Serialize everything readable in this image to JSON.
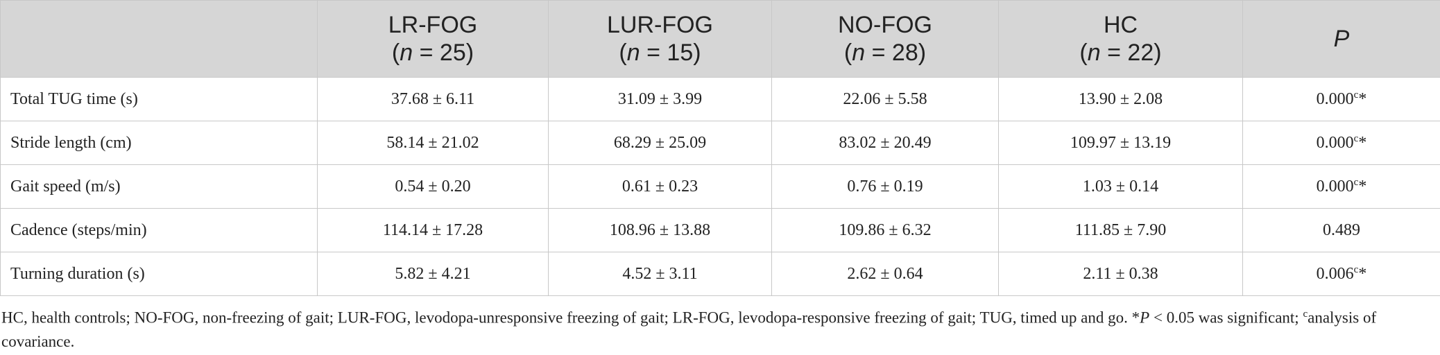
{
  "table": {
    "header": [
      {
        "name": "LR-FOG",
        "n": "(n = 25)"
      },
      {
        "name": "LUR-FOG",
        "n": "(n = 15)"
      },
      {
        "name": "NO-FOG",
        "n": "(n = 28)"
      },
      {
        "name": "HC",
        "n": "(n = 22)"
      }
    ],
    "p_header": "P",
    "rows": [
      {
        "label": "Total TUG time (s)",
        "values": [
          "37.68 ± 6.11",
          "31.09 ± 3.99",
          "22.06 ± 5.58",
          "13.90 ± 2.08"
        ],
        "p": "0.000",
        "p_note": "c",
        "p_star": "*"
      },
      {
        "label": "Stride length (cm)",
        "values": [
          "58.14 ± 21.02",
          "68.29 ± 25.09",
          "83.02 ± 20.49",
          "109.97 ± 13.19"
        ],
        "p": "0.000",
        "p_note": "c",
        "p_star": "*"
      },
      {
        "label": "Gait speed (m/s)",
        "values": [
          "0.54 ± 0.20",
          "0.61 ± 0.23",
          "0.76 ± 0.19",
          "1.03 ± 0.14"
        ],
        "p": "0.000",
        "p_note": "c",
        "p_star": "*"
      },
      {
        "label": "Cadence (steps/min)",
        "values": [
          "114.14 ± 17.28",
          "108.96 ± 13.88",
          "109.86 ± 6.32",
          "111.85 ± 7.90"
        ],
        "p": "0.489"
      },
      {
        "label": "Turning duration (s)",
        "values": [
          "5.82 ± 4.21",
          "4.52 ± 3.11",
          "2.62 ± 0.64",
          "2.11 ± 0.38"
        ],
        "p": "0.006",
        "p_note": "c",
        "p_star": "*"
      }
    ]
  },
  "footnote": [
    {
      "text": "HC, health controls; NO-FOG, non-freezing of gait; LUR-FOG, levodopa-unresponsive freezing of gait; LR-FOG, levodopa-responsive freezing of gait; TUG, timed up and go. ",
      "style": "normal"
    },
    {
      "text": "*",
      "style": "normal"
    },
    {
      "text": "P",
      "style": "italic"
    },
    {
      "text": " < 0.05 was significant; ",
      "style": "normal"
    },
    {
      "text": "c",
      "style": "sup"
    },
    {
      "text": "analysis of covariance.",
      "style": "normal"
    }
  ]
}
